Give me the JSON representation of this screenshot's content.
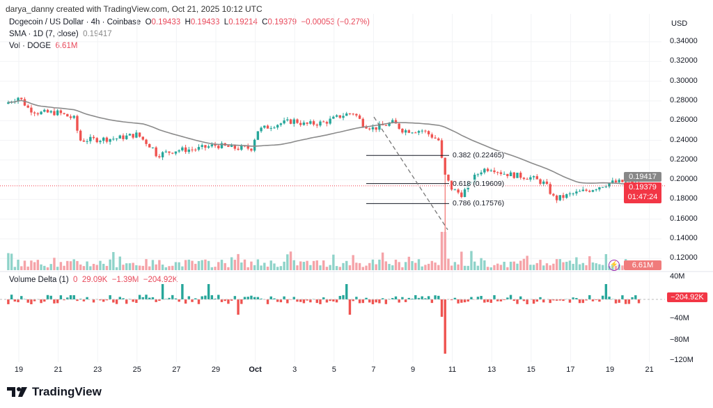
{
  "credit": "darya_danny created with TradingView.com, Oct 21, 2025 10:12 UTC",
  "symbol": {
    "name": "Dogecoin / US Dollar · 4h · Coinbase",
    "o_label": "O",
    "o": "0.19433",
    "h_label": "H",
    "h": "0.19433",
    "l_label": "L",
    "l": "0.19214",
    "c_label": "C",
    "c": "0.19379",
    "change": "−0.00053 (−0.27%)"
  },
  "sma": {
    "label": "SMA · 1D (7, close)",
    "value": "0.19417"
  },
  "vol": {
    "label": "Vol · DOGE",
    "value": "6.61M"
  },
  "delta": {
    "label": "Volume Delta (1)",
    "v0": "0",
    "v1": "29.09K",
    "v2": "−1.39M",
    "v3": "−204.92K"
  },
  "currency": "USD",
  "price_ticks": [
    "0.34000",
    "0.32000",
    "0.30000",
    "0.28000",
    "0.26000",
    "0.24000",
    "0.22000",
    "0.20000",
    "0.18000",
    "0.16000",
    "0.14000",
    "0.12000"
  ],
  "delta_ticks": [
    "40M",
    "−40M",
    "−80M",
    "−120M"
  ],
  "date_ticks": [
    "19",
    "21",
    "23",
    "25",
    "27",
    "29",
    "Oct",
    "3",
    "5",
    "7",
    "9",
    "11",
    "13",
    "15",
    "17",
    "19",
    "21"
  ],
  "tags": {
    "sma": "0.19417",
    "price": "0.19379",
    "countdown": "01:47:24",
    "volume": "6.61M",
    "delta": "−204.92K"
  },
  "fib": [
    {
      "label": "0.382 (0.22465)",
      "price": 0.22465
    },
    {
      "label": "0.618 (0.19609)",
      "price": 0.19609
    },
    {
      "label": "0.786 (0.17576)",
      "price": 0.17576
    }
  ],
  "colors": {
    "up": "#26a69a",
    "down": "#ef5350",
    "sma": "#8a8a8a"
  },
  "brand": "TradingView",
  "chart_data": {
    "type": "candlestick",
    "timeframe": "4h",
    "price_path_day_offsets_from_sep19": [
      [
        -0.7,
        0.277
      ],
      [
        0,
        0.284
      ],
      [
        0.5,
        0.272
      ],
      [
        1,
        0.268
      ],
      [
        2,
        0.268
      ],
      [
        2.8,
        0.262
      ],
      [
        3.1,
        0.24
      ],
      [
        4,
        0.241
      ],
      [
        5,
        0.242
      ],
      [
        6,
        0.246
      ],
      [
        6.8,
        0.232
      ],
      [
        7,
        0.225
      ],
      [
        8,
        0.23
      ],
      [
        9,
        0.231
      ],
      [
        10,
        0.235
      ],
      [
        11,
        0.232
      ],
      [
        11.8,
        0.232
      ],
      [
        12.1,
        0.25
      ],
      [
        13,
        0.256
      ],
      [
        14,
        0.26
      ],
      [
        14.5,
        0.256
      ],
      [
        15.5,
        0.258
      ],
      [
        16.5,
        0.266
      ],
      [
        17,
        0.268
      ],
      [
        17.5,
        0.256
      ],
      [
        18,
        0.252
      ],
      [
        19,
        0.258
      ],
      [
        19.5,
        0.25
      ],
      [
        20.5,
        0.25
      ],
      [
        21.3,
        0.24
      ],
      [
        21.6,
        0.205
      ],
      [
        22,
        0.19
      ],
      [
        22.5,
        0.185
      ],
      [
        23,
        0.2
      ],
      [
        23.5,
        0.21
      ],
      [
        24,
        0.212
      ],
      [
        24.5,
        0.207
      ],
      [
        25,
        0.205
      ],
      [
        26,
        0.202
      ],
      [
        26.7,
        0.196
      ],
      [
        27.2,
        0.18
      ],
      [
        28,
        0.185
      ],
      [
        29,
        0.19
      ],
      [
        30,
        0.197
      ],
      [
        31,
        0.198
      ],
      [
        31.5,
        0.194
      ]
    ],
    "crash_low": 0.145,
    "ylim": [
      0.11,
      0.35
    ]
  }
}
